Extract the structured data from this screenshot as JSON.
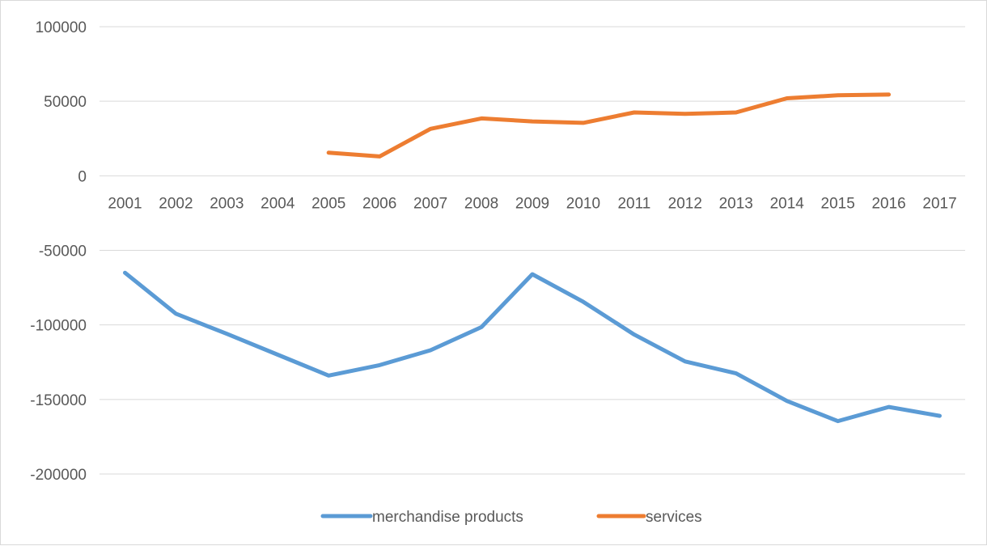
{
  "chart_data": {
    "type": "line",
    "x": [
      "2001",
      "2002",
      "2003",
      "2004",
      "2005",
      "2006",
      "2007",
      "2008",
      "2009",
      "2010",
      "2011",
      "2012",
      "2013",
      "2014",
      "2015",
      "2016",
      "2017"
    ],
    "ylim": [
      -200000,
      100000
    ],
    "yticks": [
      100000,
      50000,
      0,
      -50000,
      -100000,
      -150000,
      -200000
    ],
    "ytick_labels": [
      "100000",
      "50000",
      "0",
      "-50000",
      "-100000",
      "-150000",
      "-200000"
    ],
    "grid": "horizontal",
    "legend": "bottom",
    "series": [
      {
        "name": "merchandise products",
        "color": "#5b9bd5",
        "values": [
          -65000,
          -92500,
          -106000,
          -120000,
          -134000,
          -127000,
          -117000,
          -101500,
          -66000,
          -84500,
          -106500,
          -124500,
          -132500,
          -151000,
          -164500,
          -155000,
          -161000
        ]
      },
      {
        "name": "services",
        "color": "#ed7d31",
        "values": [
          null,
          null,
          null,
          null,
          15500,
          13000,
          31500,
          38500,
          36500,
          35500,
          42500,
          41500,
          42500,
          52000,
          54000,
          54500,
          null
        ]
      }
    ]
  }
}
